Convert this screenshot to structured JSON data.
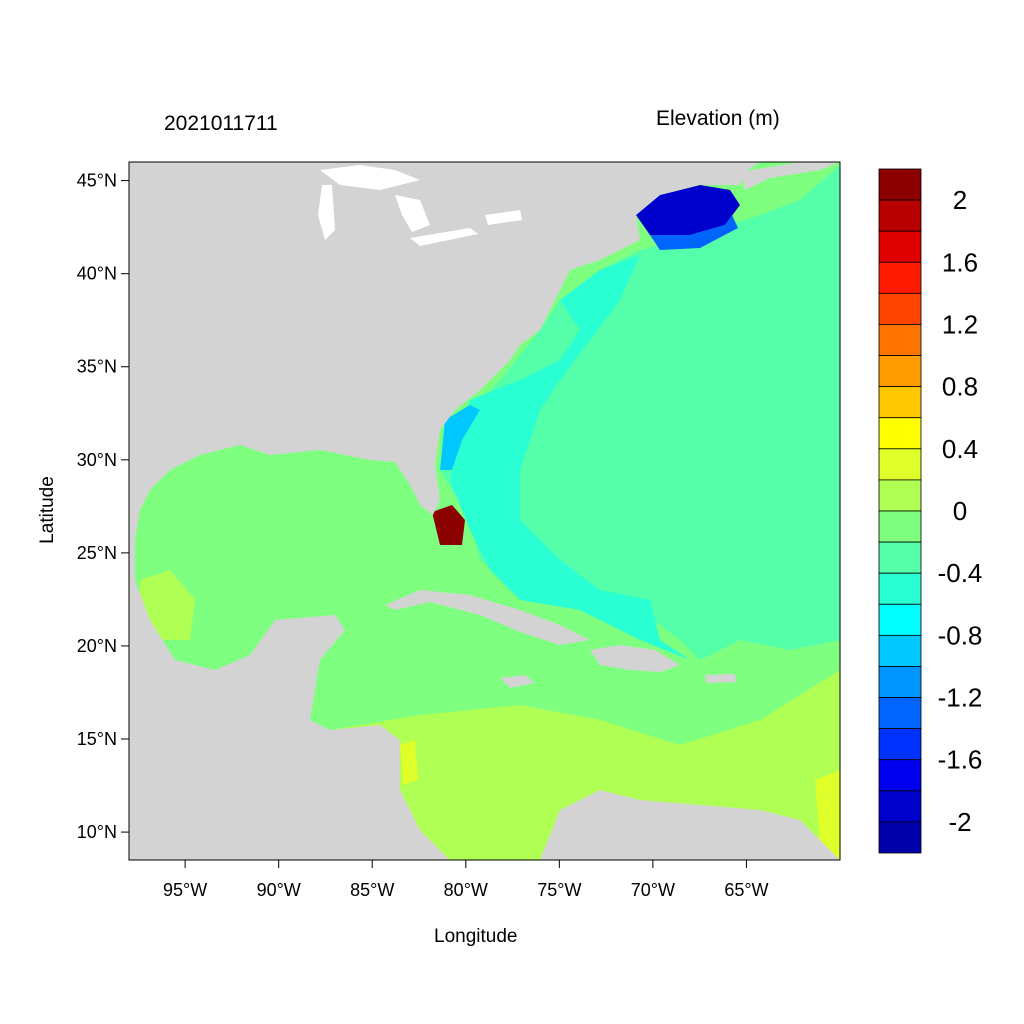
{
  "titles": {
    "left": "2021011711",
    "right": "Elevation (m)"
  },
  "axes": {
    "xlabel": "Longitude",
    "ylabel": "Latitude",
    "lon_range": [
      -98,
      -60
    ],
    "lat_range": [
      8.5,
      46
    ],
    "x_ticks": [
      {
        "value": -95,
        "label": "95°W"
      },
      {
        "value": -90,
        "label": "90°W"
      },
      {
        "value": -85,
        "label": "85°W"
      },
      {
        "value": -80,
        "label": "80°W"
      },
      {
        "value": -75,
        "label": "75°W"
      },
      {
        "value": -70,
        "label": "70°W"
      },
      {
        "value": -65,
        "label": "65°W"
      }
    ],
    "y_ticks": [
      {
        "value": 45,
        "label": "45°N"
      },
      {
        "value": 40,
        "label": "40°N"
      },
      {
        "value": 35,
        "label": "35°N"
      },
      {
        "value": 30,
        "label": "30°N"
      },
      {
        "value": 25,
        "label": "25°N"
      },
      {
        "value": 20,
        "label": "20°N"
      },
      {
        "value": 15,
        "label": "15°N"
      },
      {
        "value": 10,
        "label": "10°N"
      }
    ]
  },
  "colorbar": {
    "colors": [
      "#8b0000",
      "#b80000",
      "#e00000",
      "#ff1a00",
      "#ff4400",
      "#ff7300",
      "#ff9c00",
      "#ffc800",
      "#ffff00",
      "#dfff2a",
      "#b0ff55",
      "#7fff80",
      "#55ffaa",
      "#2affd4",
      "#00ffff",
      "#00c8ff",
      "#0096ff",
      "#0064ff",
      "#0032ff",
      "#0000ee",
      "#0000cc",
      "#0000aa"
    ],
    "labels": [
      "2",
      "1.6",
      "1.2",
      "0.8",
      "0.4",
      "0",
      "-0.4",
      "-0.8",
      "-1.2",
      "-1.6",
      "-2"
    ]
  },
  "colors": {
    "land": "#d3d3d3",
    "ocean_default": "#7fff80"
  }
}
